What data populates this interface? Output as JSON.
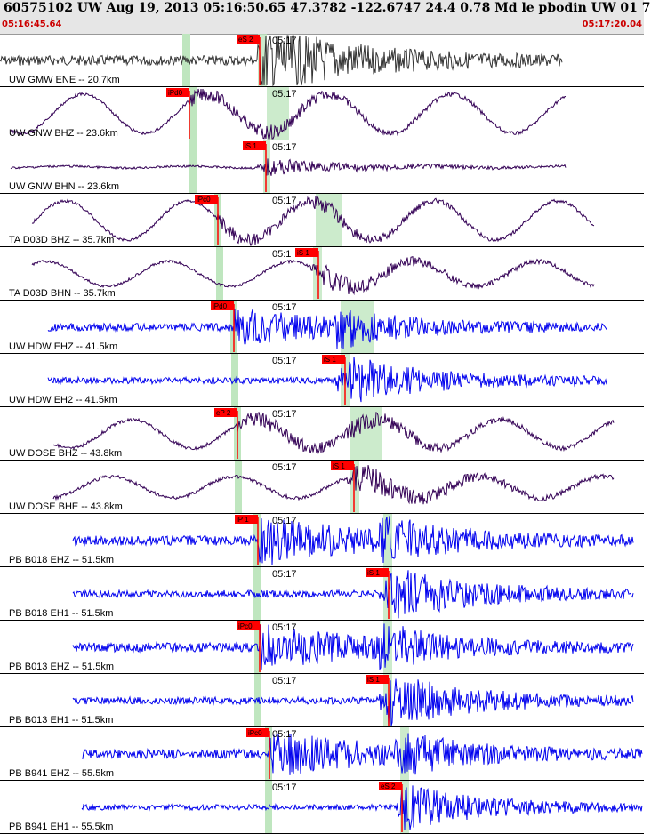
{
  "header": {
    "title": "60575102 UW Aug 19, 2013 05:16:50.65    47.3782 -122.6747 24.4 0.78 Md le pbodin UW 01    7",
    "start_time": "05:16:45.64",
    "end_time": "05:17:20.04"
  },
  "colors": {
    "header_bg": "#e6e6e6",
    "time_text": "#cc0000",
    "pick": "#ff0000",
    "window": "#bfe6bf",
    "trace_gray": "#333333",
    "trace_purple": "#330055",
    "trace_blue": "#0000ee"
  },
  "panels": [
    {
      "label": "UW GMW ENE -- 20.7km",
      "tick": "05:17",
      "pick": "eS 2",
      "color": "gray"
    },
    {
      "label": "UW GNW BHZ -- 23.6km",
      "tick": "05:17",
      "pick": "iPd0",
      "color": "purple"
    },
    {
      "label": "UW GNW BHN -- 23.6km",
      "tick": "05:17",
      "pick": "iS 1",
      "color": "purple"
    },
    {
      "label": "TA D03D BHZ -- 35.7km",
      "tick": "05:17",
      "pick": "iPc0",
      "color": "purple"
    },
    {
      "label": "TA D03D BHN -- 35.7km",
      "tick": "05:1",
      "pick": "iS 1",
      "color": "purple"
    },
    {
      "label": "UW HDW EHZ -- 41.5km",
      "tick": "05:17",
      "pick": "iPd0",
      "color": "blue"
    },
    {
      "label": "UW HDW EH2 -- 41.5km",
      "tick": "05:17",
      "pick": "iS 1",
      "color": "blue"
    },
    {
      "label": "UW DOSE BHZ -- 43.8km",
      "tick": "05:17",
      "pick": "eP 2",
      "color": "purple"
    },
    {
      "label": "UW DOSE BHE -- 43.8km",
      "tick": "05:17",
      "pick": "iS 1",
      "color": "purple"
    },
    {
      "label": "PB B018 EHZ -- 51.5km",
      "tick": "05:17",
      "pick": "iP 1",
      "color": "blue"
    },
    {
      "label": "PB B018 EH1 -- 51.5km",
      "tick": "05:17",
      "pick": "iS 1",
      "color": "blue"
    },
    {
      "label": "PB B013 EHZ -- 51.5km",
      "tick": "05:17",
      "pick": "iPc0",
      "color": "blue"
    },
    {
      "label": "PB B013 EH1 -- 51.5km",
      "tick": "05:17",
      "pick": "iS 1",
      "color": "blue"
    },
    {
      "label": "PB B941 EHZ -- 55.5km",
      "tick": "05:17",
      "pick": "iPc0",
      "color": "blue"
    },
    {
      "label": "PB B941 EH1 -- 55.5km",
      "tick": "05:17",
      "pick": "eS 2",
      "color": "blue"
    }
  ]
}
